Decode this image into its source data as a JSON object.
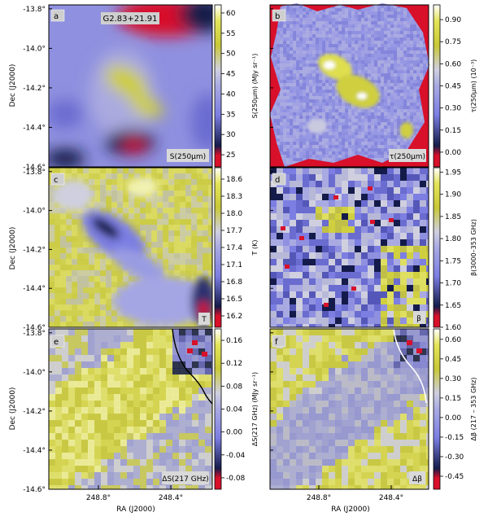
{
  "figure": {
    "source_label": "G2.83+21.91",
    "xlabel": "RA (J2000)",
    "ylabel": "Dec (J2000)",
    "x_ticks": [
      "248.8°",
      "248.4°"
    ],
    "y_ticks": [
      "-13.8°",
      "-14.0°",
      "-14.2°",
      "-14.4°",
      "-14.6°"
    ],
    "colors": {
      "low": "#d8102a",
      "dark": "#141b4a",
      "mid": "#8f90e4",
      "pale": "#cfcfe2",
      "high": "#d2d22a",
      "top": "#ffffff"
    }
  },
  "chart_data": [
    {
      "type": "heatmap",
      "panel": "a",
      "name": "S(250μm)",
      "cbar_label": "S(250μm) (MJy sr⁻¹)",
      "cbar_ticks": [
        "25",
        "30",
        "35",
        "40",
        "45",
        "50",
        "55",
        "60"
      ],
      "cbar_range": [
        22,
        62
      ],
      "xlim": [
        249.05,
        248.15
      ],
      "ylim": [
        -14.6,
        -13.78
      ]
    },
    {
      "type": "heatmap",
      "panel": "b",
      "name": "τ(250μm)",
      "cbar_label": "τ(250μm) (10⁻³)",
      "cbar_ticks": [
        "0.00",
        "0.15",
        "0.30",
        "0.45",
        "0.60",
        "0.75",
        "0.90"
      ],
      "cbar_range": [
        -0.1,
        1.0
      ],
      "xlim": [
        249.05,
        248.15
      ],
      "ylim": [
        -14.6,
        -13.78
      ]
    },
    {
      "type": "heatmap",
      "panel": "c",
      "name": "T",
      "cbar_label": "T (K)",
      "cbar_ticks": [
        "16.2",
        "16.5",
        "16.8",
        "17.1",
        "17.4",
        "17.7",
        "18.0",
        "18.3",
        "18.6"
      ],
      "cbar_range": [
        16.0,
        18.8
      ],
      "xlim": [
        249.05,
        248.15
      ],
      "ylim": [
        -14.6,
        -13.78
      ]
    },
    {
      "type": "heatmap",
      "panel": "d",
      "name": "β",
      "cbar_label": "β(3000–353 GHz)",
      "cbar_ticks": [
        "1.60",
        "1.65",
        "1.70",
        "1.75",
        "1.80",
        "1.85",
        "1.90",
        "1.95"
      ],
      "cbar_range": [
        1.6,
        1.96
      ],
      "xlim": [
        249.05,
        248.15
      ],
      "ylim": [
        -14.6,
        -13.78
      ]
    },
    {
      "type": "heatmap",
      "panel": "e",
      "name": "ΔS(217 GHz)",
      "cbar_label": "ΔS(217 GHz) (MJy sr⁻¹)",
      "cbar_ticks": [
        "-0.08",
        "-0.04",
        "0.00",
        "0.04",
        "0.08",
        "0.12",
        "0.16"
      ],
      "cbar_range": [
        -0.1,
        0.18
      ],
      "xlim": [
        249.05,
        248.15
      ],
      "ylim": [
        -14.6,
        -13.78
      ]
    },
    {
      "type": "heatmap",
      "panel": "f",
      "name": "Δβ",
      "cbar_label": "Δβ (217 – 353 GHz)",
      "cbar_ticks": [
        "-0.45",
        "-0.30",
        "-0.15",
        "0.00",
        "0.15",
        "0.30",
        "0.45",
        "0.60"
      ],
      "cbar_range": [
        -0.55,
        0.68
      ],
      "xlim": [
        249.05,
        248.15
      ],
      "ylim": [
        -14.6,
        -13.78
      ]
    }
  ]
}
